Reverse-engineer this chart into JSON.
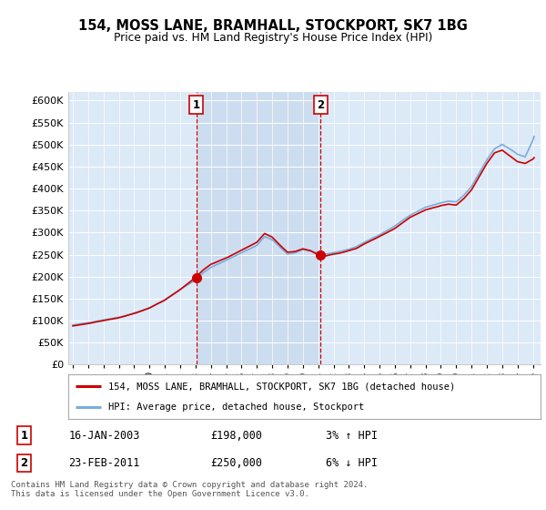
{
  "title": "154, MOSS LANE, BRAMHALL, STOCKPORT, SK7 1BG",
  "subtitle": "Price paid vs. HM Land Registry's House Price Index (HPI)",
  "plot_bg_color": "#dce9f7",
  "highlight_color": "#c8d8ee",
  "ylim": [
    0,
    620000
  ],
  "yticks": [
    0,
    50000,
    100000,
    150000,
    200000,
    250000,
    300000,
    350000,
    400000,
    450000,
    500000,
    550000,
    600000
  ],
  "legend_label_red": "154, MOSS LANE, BRAMHALL, STOCKPORT, SK7 1BG (detached house)",
  "legend_label_blue": "HPI: Average price, detached house, Stockport",
  "sale1_date": "16-JAN-2003",
  "sale1_price": 198000,
  "sale1_pct": "3%",
  "sale1_dir": "↑",
  "sale2_date": "23-FEB-2011",
  "sale2_price": 250000,
  "sale2_pct": "6%",
  "sale2_dir": "↓",
  "footer": "Contains HM Land Registry data © Crown copyright and database right 2024.\nThis data is licensed under the Open Government Licence v3.0.",
  "sale1_x": 2003.04,
  "sale2_x": 2011.15,
  "vline1_x": 2003.04,
  "vline2_x": 2011.15,
  "red_color": "#cc0000",
  "blue_color": "#7aaddd",
  "vline_color": "#cc0000",
  "x_tick_years": [
    1995,
    1996,
    1997,
    1998,
    1999,
    2000,
    2001,
    2002,
    2003,
    2004,
    2005,
    2006,
    2007,
    2008,
    2009,
    2010,
    2011,
    2012,
    2013,
    2014,
    2015,
    2016,
    2017,
    2018,
    2019,
    2020,
    2021,
    2022,
    2023,
    2024,
    2025
  ],
  "xlim_left": 1994.7,
  "xlim_right": 2025.5
}
